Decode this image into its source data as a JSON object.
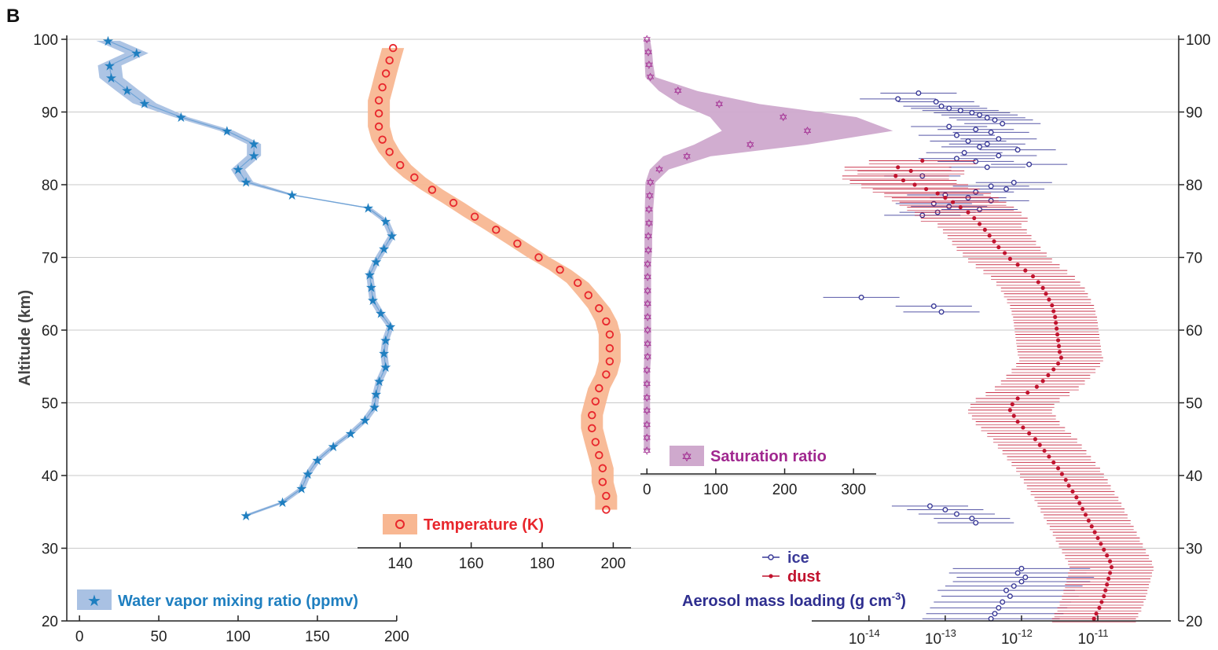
{
  "panel_label": "B",
  "chart_data": {
    "type": "scatter",
    "title": "",
    "y_axis": {
      "label": "Altitude (km)",
      "range": [
        20,
        100
      ],
      "ticks": [
        20,
        30,
        40,
        50,
        60,
        70,
        80,
        90,
        100
      ],
      "grid": true,
      "right_ticks": true
    },
    "water_vapor": {
      "legend": "Water vapor mixing ratio (ppmv)",
      "color": "#1f7fc0",
      "band_color": "#a9c1e3",
      "xlim": [
        -8,
        210
      ],
      "ticks": [
        0,
        50,
        100,
        150,
        200
      ],
      "points": [
        [
          18,
          99.8
        ],
        [
          36,
          98.1
        ],
        [
          19,
          96.4
        ],
        [
          20,
          94.7
        ],
        [
          30,
          93.0
        ],
        [
          41,
          91.2
        ],
        [
          64,
          89.3
        ],
        [
          93,
          87.4
        ],
        [
          110,
          85.6
        ],
        [
          110,
          84.0
        ],
        [
          100,
          82.1
        ],
        [
          105,
          80.4
        ],
        [
          134,
          78.6
        ],
        [
          182,
          76.8
        ],
        [
          193,
          75.0
        ],
        [
          197,
          73.0
        ],
        [
          192,
          71.2
        ],
        [
          187,
          69.4
        ],
        [
          183,
          67.6
        ],
        [
          184,
          65.9
        ],
        [
          185,
          64.1
        ],
        [
          190,
          62.3
        ],
        [
          196,
          60.5
        ],
        [
          193,
          58.6
        ],
        [
          192,
          56.8
        ],
        [
          193,
          54.9
        ],
        [
          189,
          53.0
        ],
        [
          187,
          51.2
        ],
        [
          186,
          49.4
        ],
        [
          180,
          47.6
        ],
        [
          171,
          45.8
        ],
        [
          160,
          44.0
        ],
        [
          150,
          42.1
        ],
        [
          144,
          40.2
        ],
        [
          140,
          38.2
        ],
        [
          128,
          36.3
        ],
        [
          105,
          34.5
        ]
      ]
    },
    "temperature": {
      "legend": "Temperature (K)",
      "color": "#e8262c",
      "band_color": "#f8b792",
      "xlim": [
        128,
        205
      ],
      "ticks": [
        140,
        160,
        180,
        200
      ],
      "points": [
        [
          138,
          98.8
        ],
        [
          137,
          97.1
        ],
        [
          136,
          95.3
        ],
        [
          135,
          93.4
        ],
        [
          134,
          91.6
        ],
        [
          134,
          89.8
        ],
        [
          134,
          88.0
        ],
        [
          135,
          86.2
        ],
        [
          137,
          84.5
        ],
        [
          140,
          82.7
        ],
        [
          144,
          81.0
        ],
        [
          149,
          79.3
        ],
        [
          155,
          77.5
        ],
        [
          161,
          75.6
        ],
        [
          167,
          73.8
        ],
        [
          173,
          71.9
        ],
        [
          179,
          70.0
        ],
        [
          185,
          68.3
        ],
        [
          190,
          66.5
        ],
        [
          193,
          64.8
        ],
        [
          196,
          63.0
        ],
        [
          198,
          61.2
        ],
        [
          199,
          59.4
        ],
        [
          199,
          57.5
        ],
        [
          199,
          55.7
        ],
        [
          198,
          53.9
        ],
        [
          196,
          52.0
        ],
        [
          195,
          50.2
        ],
        [
          194,
          48.3
        ],
        [
          194,
          46.5
        ],
        [
          195,
          44.6
        ],
        [
          196,
          42.8
        ],
        [
          197,
          41.0
        ],
        [
          197,
          39.1
        ],
        [
          198,
          37.2
        ],
        [
          198,
          35.3
        ]
      ]
    },
    "saturation": {
      "legend": "Saturation ratio",
      "color": "#a0278f",
      "band_color": "#cfa9cd",
      "xlim": [
        -6,
        350
      ],
      "ticks": [
        0,
        100,
        200,
        300
      ],
      "points": [
        [
          0,
          100.0
        ],
        [
          2,
          98.2
        ],
        [
          3,
          96.5
        ],
        [
          5,
          94.8
        ],
        [
          45,
          92.9
        ],
        [
          105,
          91.1
        ],
        [
          198,
          89.3
        ],
        [
          233,
          87.4
        ],
        [
          150,
          85.5
        ],
        [
          58,
          83.9
        ],
        [
          18,
          82.1
        ],
        [
          5,
          80.3
        ],
        [
          4,
          78.5
        ],
        [
          3,
          76.6
        ],
        [
          3,
          74.7
        ],
        [
          2,
          72.9
        ],
        [
          2,
          71.0
        ],
        [
          1,
          69.1
        ],
        [
          1,
          67.3
        ],
        [
          1,
          65.4
        ],
        [
          1,
          63.6
        ],
        [
          1,
          61.8
        ],
        [
          1,
          60.0
        ],
        [
          1,
          58.1
        ],
        [
          1,
          56.3
        ],
        [
          0,
          54.5
        ],
        [
          0,
          52.6
        ],
        [
          0,
          50.7
        ],
        [
          0,
          48.9
        ],
        [
          0,
          47.0
        ],
        [
          0,
          45.2
        ],
        [
          0,
          43.4
        ]
      ]
    },
    "aerosol": {
      "xlabel_main": "Aerosol mass loading (g cm",
      "xlabel_sup": "-3",
      "xlabel_tail": ")",
      "x_scale": "log",
      "xlim_log10": [
        -14.75,
        -10.3
      ],
      "tick_exponents": [
        -14,
        -13,
        -12,
        -11
      ],
      "tick_base": "10",
      "tick_labels": [
        "-14",
        "-13",
        "-12",
        "-11"
      ],
      "series": [
        {
          "name": "ice",
          "color": "#3b3b98",
          "points": [
            [
              -13.35,
              92.6
            ],
            [
              -13.62,
              91.8
            ],
            [
              -13.12,
              91.4
            ],
            [
              -13.05,
              90.8
            ],
            [
              -12.95,
              90.5
            ],
            [
              -12.8,
              90.2
            ],
            [
              -12.65,
              89.9
            ],
            [
              -12.55,
              89.6
            ],
            [
              -12.45,
              89.2
            ],
            [
              -12.35,
              88.9
            ],
            [
              -12.25,
              88.4
            ],
            [
              -12.95,
              88.0
            ],
            [
              -12.6,
              87.6
            ],
            [
              -12.4,
              87.2
            ],
            [
              -12.85,
              86.8
            ],
            [
              -12.3,
              86.3
            ],
            [
              -12.7,
              86.0
            ],
            [
              -12.45,
              85.6
            ],
            [
              -12.55,
              85.2
            ],
            [
              -12.05,
              84.8
            ],
            [
              -12.75,
              84.4
            ],
            [
              -12.3,
              84.0
            ],
            [
              -12.85,
              83.6
            ],
            [
              -12.6,
              83.2
            ],
            [
              -11.9,
              82.8
            ],
            [
              -12.45,
              82.4
            ],
            [
              -13.3,
              81.2
            ],
            [
              -12.1,
              80.3
            ],
            [
              -12.4,
              79.8
            ],
            [
              -12.2,
              79.4
            ],
            [
              -12.6,
              79.0
            ],
            [
              -13.0,
              78.6
            ],
            [
              -12.7,
              78.2
            ],
            [
              -12.4,
              77.8
            ],
            [
              -13.15,
              77.4
            ],
            [
              -12.95,
              77.0
            ],
            [
              -12.55,
              76.6
            ],
            [
              -13.1,
              76.2
            ],
            [
              -13.3,
              75.8
            ],
            [
              -14.1,
              64.5
            ],
            [
              -13.15,
              63.3
            ],
            [
              -13.05,
              62.5
            ],
            [
              -13.2,
              35.8
            ],
            [
              -13.0,
              35.3
            ],
            [
              -12.85,
              34.7
            ],
            [
              -12.65,
              34.1
            ],
            [
              -12.6,
              33.5
            ],
            [
              -12.0,
              27.2
            ],
            [
              -12.05,
              26.6
            ],
            [
              -11.95,
              26.0
            ],
            [
              -12.0,
              25.4
            ],
            [
              -12.1,
              24.8
            ],
            [
              -12.2,
              24.2
            ],
            [
              -12.15,
              23.4
            ],
            [
              -12.25,
              22.6
            ],
            [
              -12.3,
              21.8
            ],
            [
              -12.35,
              21.0
            ],
            [
              -12.4,
              20.3
            ]
          ]
        },
        {
          "name": "dust",
          "color": "#c1132e",
          "points": [
            [
              -13.3,
              83.3
            ],
            [
              -13.62,
              82.4
            ],
            [
              -13.45,
              81.9
            ],
            [
              -13.65,
              81.2
            ],
            [
              -13.55,
              80.6
            ],
            [
              -13.4,
              80.0
            ],
            [
              -13.25,
              79.4
            ],
            [
              -13.1,
              78.8
            ],
            [
              -13.0,
              78.2
            ],
            [
              -12.9,
              77.6
            ],
            [
              -12.8,
              76.9
            ],
            [
              -12.7,
              76.2
            ],
            [
              -12.62,
              75.4
            ],
            [
              -12.55,
              74.6
            ],
            [
              -12.48,
              73.8
            ],
            [
              -12.42,
              73.0
            ],
            [
              -12.36,
              72.2
            ],
            [
              -12.3,
              71.4
            ],
            [
              -12.22,
              70.6
            ],
            [
              -12.15,
              69.8
            ],
            [
              -12.05,
              69.0
            ],
            [
              -11.95,
              68.2
            ],
            [
              -11.85,
              67.4
            ],
            [
              -11.78,
              66.6
            ],
            [
              -11.72,
              65.8
            ],
            [
              -11.68,
              65.0
            ],
            [
              -11.64,
              64.2
            ],
            [
              -11.6,
              63.4
            ],
            [
              -11.58,
              62.6
            ],
            [
              -11.56,
              61.8
            ],
            [
              -11.55,
              61.0
            ],
            [
              -11.54,
              60.2
            ],
            [
              -11.53,
              59.4
            ],
            [
              -11.52,
              58.6
            ],
            [
              -11.51,
              57.8
            ],
            [
              -11.5,
              57.0
            ],
            [
              -11.48,
              56.2
            ],
            [
              -11.52,
              55.4
            ],
            [
              -11.58,
              54.6
            ],
            [
              -11.65,
              53.8
            ],
            [
              -11.72,
              53.0
            ],
            [
              -11.8,
              52.2
            ],
            [
              -11.92,
              51.4
            ],
            [
              -12.05,
              50.6
            ],
            [
              -12.12,
              49.8
            ],
            [
              -12.15,
              49.0
            ],
            [
              -12.1,
              48.2
            ],
            [
              -12.05,
              47.4
            ],
            [
              -11.98,
              46.6
            ],
            [
              -11.9,
              45.8
            ],
            [
              -11.82,
              45.0
            ],
            [
              -11.76,
              44.2
            ],
            [
              -11.7,
              43.4
            ],
            [
              -11.64,
              42.6
            ],
            [
              -11.58,
              41.8
            ],
            [
              -11.52,
              41.0
            ],
            [
              -11.47,
              40.2
            ],
            [
              -11.42,
              39.4
            ],
            [
              -11.38,
              38.6
            ],
            [
              -11.33,
              37.8
            ],
            [
              -11.28,
              37.0
            ],
            [
              -11.24,
              36.2
            ],
            [
              -11.2,
              35.4
            ],
            [
              -11.16,
              34.6
            ],
            [
              -11.12,
              33.8
            ],
            [
              -11.08,
              33.0
            ],
            [
              -11.04,
              32.2
            ],
            [
              -11.0,
              31.4
            ],
            [
              -10.96,
              30.6
            ],
            [
              -10.92,
              29.8
            ],
            [
              -10.88,
              29.0
            ],
            [
              -10.84,
              28.2
            ],
            [
              -10.82,
              27.4
            ],
            [
              -10.84,
              26.6
            ],
            [
              -10.86,
              25.8
            ],
            [
              -10.88,
              25.0
            ],
            [
              -10.9,
              24.2
            ],
            [
              -10.92,
              23.4
            ],
            [
              -10.95,
              22.6
            ],
            [
              -10.98,
              21.8
            ],
            [
              -11.02,
              21.0
            ],
            [
              -11.05,
              20.3
            ]
          ]
        }
      ]
    }
  }
}
